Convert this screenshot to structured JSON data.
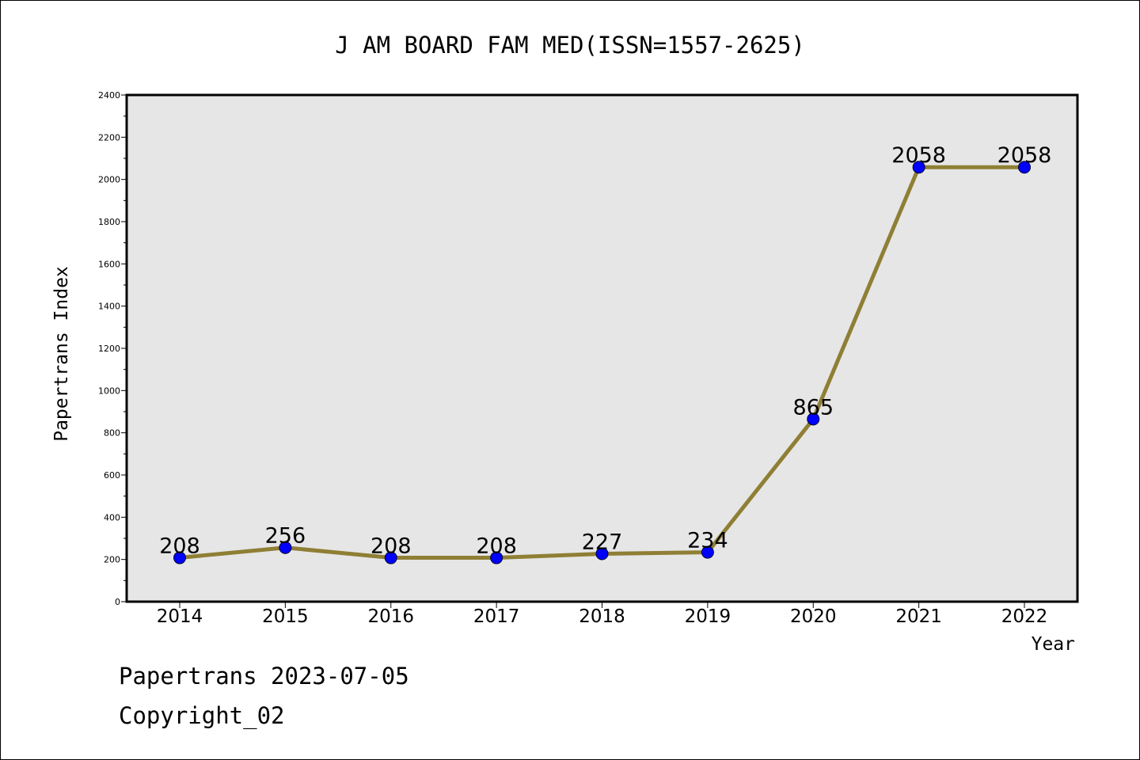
{
  "chart_data": {
    "type": "line",
    "title": "J AM BOARD FAM MED(ISSN=1557-2625)",
    "xlabel": "Year",
    "ylabel": "Papertrans Index",
    "categories": [
      "2014",
      "2015",
      "2016",
      "2017",
      "2018",
      "2019",
      "2020",
      "2021",
      "2022"
    ],
    "series": [
      {
        "values": [
          208,
          256,
          208,
          208,
          227,
          234,
          865,
          2058,
          2058
        ]
      }
    ],
    "data_labels": [
      "208",
      "256",
      "208",
      "208",
      "227",
      "234",
      "865",
      "2058",
      "2058"
    ],
    "yticks": [
      0,
      200,
      400,
      600,
      800,
      1000,
      1200,
      1400,
      1600,
      1800,
      2000,
      2200,
      2400
    ],
    "ylim": [
      0,
      2400
    ],
    "grid": false,
    "colors": {
      "line": "#8F7F35",
      "marker": "#0000FF",
      "plot_background": "#E6E6E6"
    }
  },
  "footer": {
    "line1": "Papertrans 2023-07-05",
    "line2": "Copyright_02"
  }
}
